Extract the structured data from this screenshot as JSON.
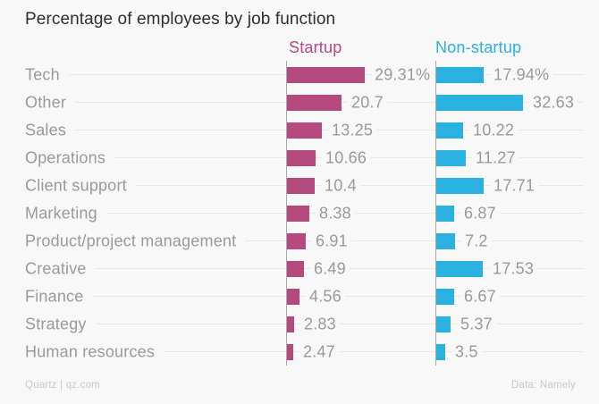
{
  "title": "Percentage of employees by job function",
  "footer": {
    "left": "Quartz | qz.com",
    "right": "Data: Namely"
  },
  "colors": {
    "background": "#f8f8f8",
    "startup": "#b54a7f",
    "non_startup": "#2bb0e2",
    "grid": "#e7e7e7",
    "axis": "#a9a9a9",
    "label_gray": "#9a9a9a",
    "title_dark": "#2e2e2e",
    "footer_gray": "#c9c9c9"
  },
  "chart_data": {
    "type": "bar",
    "orientation": "horizontal",
    "title": "Percentage of employees by job function",
    "grid": true,
    "legend_position": "top",
    "xlim": [
      0,
      35
    ],
    "unit": "percent",
    "categories": [
      "Tech",
      "Other",
      "Sales",
      "Operations",
      "Client support",
      "Marketing",
      "Product/project management",
      "Creative",
      "Finance",
      "Strategy",
      "Human resources"
    ],
    "series": [
      {
        "name": "Startup",
        "color": "#b54a7f",
        "values": [
          29.31,
          20.7,
          13.25,
          10.66,
          10.4,
          8.38,
          6.91,
          6.49,
          4.56,
          2.83,
          2.47
        ],
        "labels": [
          "29.31%",
          "20.7",
          "13.25",
          "10.66",
          "10.4",
          "8.38",
          "6.91",
          "6.49",
          "4.56",
          "2.83",
          "2.47"
        ]
      },
      {
        "name": "Non-startup",
        "color": "#2bb0e2",
        "values": [
          17.94,
          32.63,
          10.22,
          11.27,
          17.71,
          6.87,
          7.2,
          17.53,
          6.67,
          5.37,
          3.5
        ],
        "labels": [
          "17.94%",
          "32.63",
          "10.22",
          "11.27",
          "17.71",
          "6.87",
          "7.2",
          "17.53",
          "6.67",
          "5.37",
          "3.5"
        ]
      }
    ]
  }
}
